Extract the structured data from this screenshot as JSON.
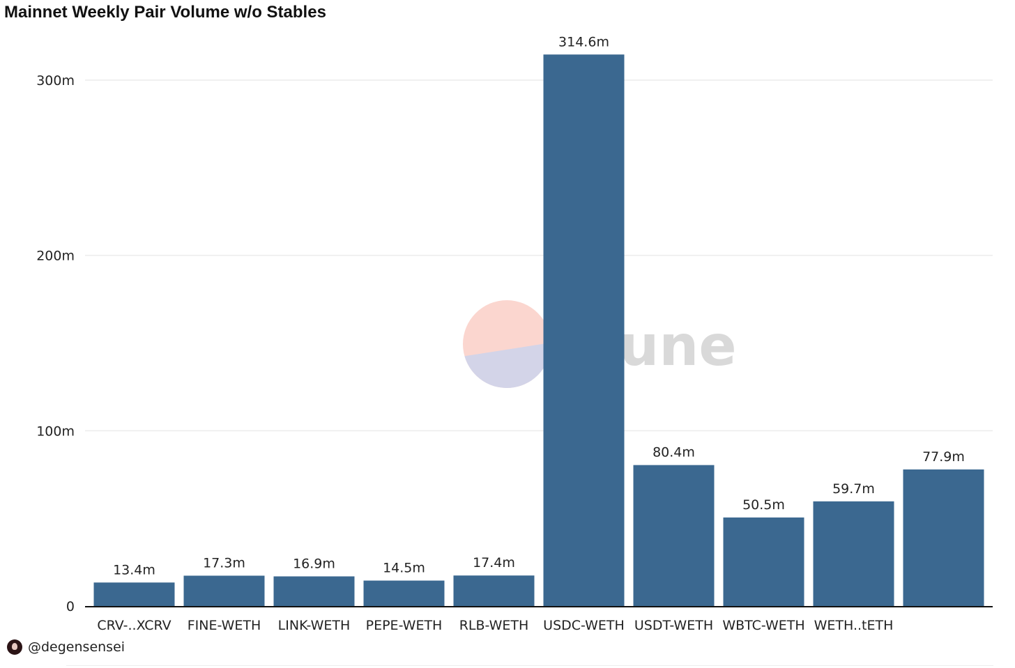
{
  "chart_data": {
    "type": "bar",
    "title": "Mainnet Weekly Pair Volume w/o Stables",
    "categories": [
      "CRV-..XCRV",
      "FINE-WETH",
      "LINK-WETH",
      "PEPE-WETH",
      "RLB-WETH",
      "USDC-WETH",
      "USDT-WETH",
      "WBTC-WETH",
      "WETH..tETH",
      ""
    ],
    "series": [
      {
        "values": [
          13.4,
          17.3,
          16.9,
          14.5,
          17.4,
          314.6,
          80.4,
          50.5,
          59.7,
          77.9
        ],
        "labels": [
          "13.4m",
          "17.3m",
          "16.9m",
          "14.5m",
          "17.4m",
          "314.6m",
          "80.4m",
          "50.5m",
          "59.7m",
          "77.9m"
        ]
      }
    ],
    "ylim": [
      0,
      300
    ],
    "yticks": [
      {
        "value": 0,
        "label": "0"
      },
      {
        "value": 100,
        "label": "100m"
      },
      {
        "value": 200,
        "label": "200m"
      },
      {
        "value": 300,
        "label": "300m"
      }
    ],
    "xlabel": "",
    "ylabel": "",
    "grid": true,
    "bar_color": "#3b6890"
  },
  "watermark": {
    "text": "Dune",
    "logo_top_color": "#fbd6cf",
    "logo_bottom_color": "#d3d4e8",
    "text_color": "#d9d9d9"
  },
  "footer": {
    "handle": "@degensensei"
  },
  "colors": {
    "grid": "#ececec",
    "axis": "#111111",
    "text": "#222222"
  }
}
